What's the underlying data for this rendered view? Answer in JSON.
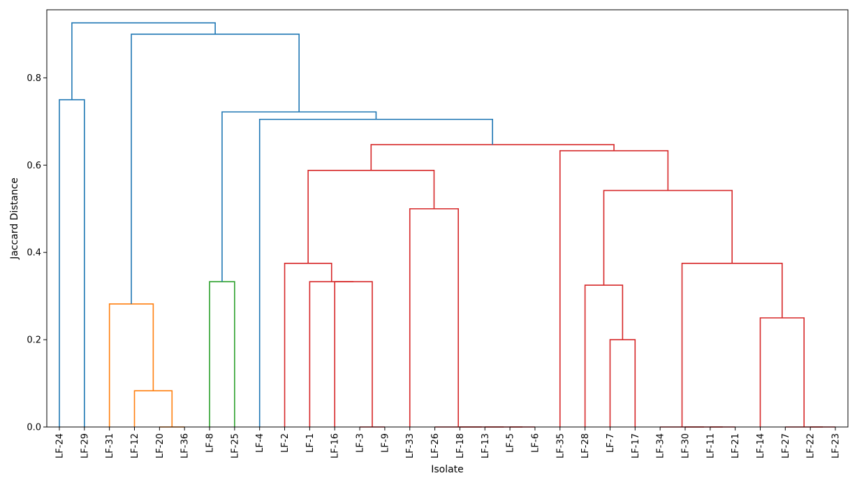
{
  "chart_data": {
    "type": "dendrogram",
    "xlabel": "Isolate",
    "ylabel": "Jaccard Distance",
    "ylim": [
      0.0,
      0.956
    ],
    "yticks": [
      "0.0",
      "0.2",
      "0.4",
      "0.6",
      "0.8"
    ],
    "yticks_values": [
      0.0,
      0.2,
      0.4,
      0.6,
      0.8
    ],
    "leaves": [
      "LF-24",
      "LF-29",
      "LF-31",
      "LF-12",
      "LF-20",
      "LF-36",
      "LF-8",
      "LF-25",
      "LF-4",
      "LF-2",
      "LF-1",
      "LF-16",
      "LF-3",
      "LF-9",
      "LF-33",
      "LF-26",
      "LF-18",
      "LF-13",
      "LF-5",
      "LF-6",
      "LF-35",
      "LF-28",
      "LF-7",
      "LF-17",
      "LF-34",
      "LF-30",
      "LF-11",
      "LF-21",
      "LF-14",
      "LF-27",
      "LF-22",
      "LF-23"
    ],
    "colors": {
      "above": "#1f77b4",
      "orange": "#ff7f0e",
      "green": "#2ca02c",
      "red": "#d62728",
      "axes": "#000000"
    },
    "merges": [
      {
        "left": "L0",
        "right": "L1",
        "height": 0.75,
        "color": "above"
      },
      {
        "left": "L4",
        "right": "L5",
        "height": 0.0,
        "color": "orange"
      },
      {
        "left": "L3",
        "right": "M1",
        "height": 0.083,
        "color": "orange"
      },
      {
        "left": "L2",
        "right": "M2",
        "height": 0.282,
        "color": "orange"
      },
      {
        "left": "L6",
        "right": "L7",
        "height": 0.333,
        "color": "green"
      },
      {
        "left": "L12",
        "right": "L13",
        "height": 0.0,
        "color": "red"
      },
      {
        "left": "L11",
        "right": "M5",
        "height": 0.333,
        "color": "red"
      },
      {
        "left": "L10",
        "right": "M6",
        "height": 0.333,
        "color": "red"
      },
      {
        "left": "L9",
        "right": "M7",
        "height": 0.375,
        "color": "red"
      },
      {
        "left": "L18",
        "right": "L19",
        "height": 0.0,
        "color": "red"
      },
      {
        "left": "L17",
        "right": "M9",
        "height": 0.0,
        "color": "red"
      },
      {
        "left": "L16",
        "right": "M10",
        "height": 0.0,
        "color": "red"
      },
      {
        "left": "L15",
        "right": "M11",
        "height": 0.0,
        "color": "red"
      },
      {
        "left": "L14",
        "right": "M12",
        "height": 0.5,
        "color": "red"
      },
      {
        "left": "M8",
        "right": "M13",
        "height": 0.588,
        "color": "red"
      },
      {
        "left": "L22",
        "right": "L23",
        "height": 0.2,
        "color": "red"
      },
      {
        "left": "L21",
        "right": "M15",
        "height": 0.325,
        "color": "red"
      },
      {
        "left": "L26",
        "right": "L27",
        "height": 0.0,
        "color": "red"
      },
      {
        "left": "L25",
        "right": "M17",
        "height": 0.0,
        "color": "red"
      },
      {
        "left": "L24",
        "right": "M18",
        "height": 0.0,
        "color": "red"
      },
      {
        "left": "L30",
        "right": "L31",
        "height": 0.0,
        "color": "red"
      },
      {
        "left": "L29",
        "right": "M20",
        "height": 0.0,
        "color": "red"
      },
      {
        "left": "L28",
        "right": "M21",
        "height": 0.25,
        "color": "red"
      },
      {
        "left": "M19",
        "right": "M22",
        "height": 0.375,
        "color": "red"
      },
      {
        "left": "M16",
        "right": "M23",
        "height": 0.542,
        "color": "red"
      },
      {
        "left": "L20",
        "right": "M24",
        "height": 0.633,
        "color": "red"
      },
      {
        "left": "M14",
        "right": "M25",
        "height": 0.647,
        "color": "red"
      },
      {
        "left": "L8",
        "right": "M26",
        "height": 0.705,
        "color": "above"
      },
      {
        "left": "M4",
        "right": "M27",
        "height": 0.722,
        "color": "above"
      },
      {
        "left": "M3",
        "right": "M28",
        "height": 0.9,
        "color": "above"
      },
      {
        "left": "M0",
        "right": "M29",
        "height": 0.926,
        "color": "above"
      }
    ]
  }
}
